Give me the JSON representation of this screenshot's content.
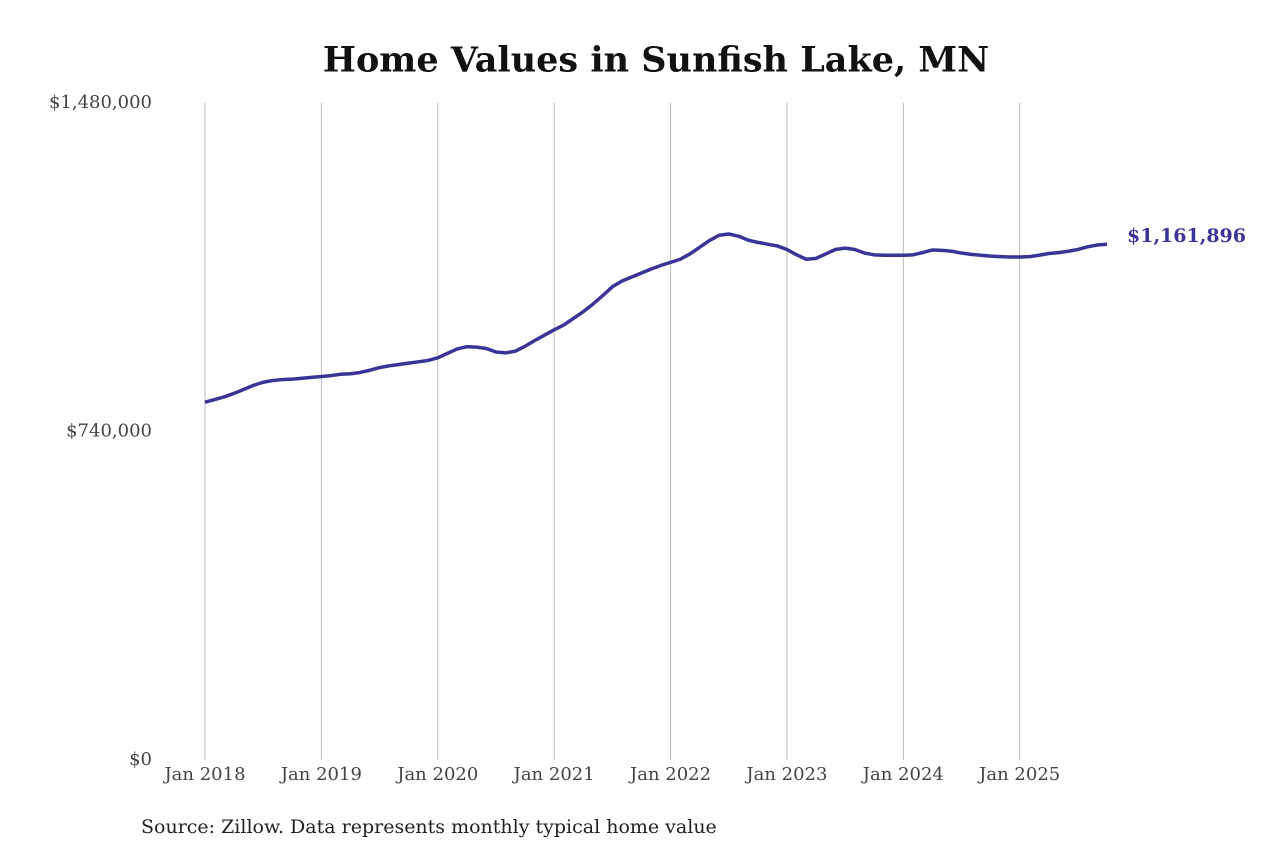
{
  "chart_data": {
    "type": "line",
    "title": "Home Values in Sunfish Lake, MN",
    "note": "Source: Zillow. Data represents monthly typical home value",
    "x": [
      "2018-01",
      "2018-02",
      "2018-03",
      "2018-04",
      "2018-05",
      "2018-06",
      "2018-07",
      "2018-08",
      "2018-09",
      "2018-10",
      "2018-11",
      "2018-12",
      "2019-01",
      "2019-02",
      "2019-03",
      "2019-04",
      "2019-05",
      "2019-06",
      "2019-07",
      "2019-08",
      "2019-09",
      "2019-10",
      "2019-11",
      "2019-12",
      "2020-01",
      "2020-02",
      "2020-03",
      "2020-04",
      "2020-05",
      "2020-06",
      "2020-07",
      "2020-08",
      "2020-09",
      "2020-10",
      "2020-11",
      "2020-12",
      "2021-01",
      "2021-02",
      "2021-03",
      "2021-04",
      "2021-05",
      "2021-06",
      "2021-07",
      "2021-08",
      "2021-09",
      "2021-10",
      "2021-11",
      "2021-12",
      "2022-01",
      "2022-02",
      "2022-03",
      "2022-04",
      "2022-05",
      "2022-06",
      "2022-07",
      "2022-08",
      "2022-09",
      "2022-10",
      "2022-11",
      "2022-12",
      "2023-01",
      "2023-02",
      "2023-03",
      "2023-04",
      "2023-05",
      "2023-06",
      "2023-07",
      "2023-08",
      "2023-09",
      "2023-10",
      "2023-11",
      "2023-12",
      "2024-01",
      "2024-02",
      "2024-03",
      "2024-04",
      "2024-05",
      "2024-06",
      "2024-07",
      "2024-08",
      "2024-09",
      "2024-10",
      "2024-11",
      "2024-12",
      "2025-01",
      "2025-02",
      "2025-03",
      "2025-04",
      "2025-05",
      "2025-06",
      "2025-07",
      "2025-08",
      "2025-09",
      "2025-10"
    ],
    "series": [
      {
        "color": "#3a3496",
        "values": [
          806000,
          812000,
          818000,
          826000,
          835000,
          844000,
          851000,
          855000,
          857000,
          858000,
          860000,
          862000,
          864000,
          866000,
          869000,
          870000,
          873000,
          878000,
          884000,
          888000,
          891000,
          894000,
          897000,
          900000,
          906000,
          916000,
          926000,
          931000,
          930000,
          927000,
          919000,
          917000,
          921000,
          932000,
          945000,
          957000,
          969000,
          980000,
          995000,
          1010000,
          1027000,
          1046000,
          1066000,
          1079000,
          1088000,
          1097000,
          1106000,
          1114000,
          1121000,
          1128000,
          1140000,
          1155000,
          1170000,
          1182000,
          1185000,
          1180000,
          1171000,
          1166000,
          1162000,
          1158000,
          1150000,
          1138000,
          1128000,
          1130000,
          1140000,
          1150000,
          1153000,
          1150000,
          1142000,
          1138000,
          1137000,
          1137000,
          1137000,
          1138000,
          1143000,
          1149000,
          1148000,
          1146000,
          1142000,
          1139000,
          1137000,
          1135000,
          1134000,
          1133000,
          1133000,
          1134000,
          1137000,
          1141000,
          1143000,
          1146000,
          1150000,
          1156000,
          1160000,
          1161896
        ],
        "end_label": {
          "value": 1161896,
          "label": "$1,161,896"
        }
      }
    ],
    "xlim": [
      "2018-01",
      "2025-10"
    ],
    "xticks": [
      {
        "value": "2018-01",
        "label": "Jan 2018"
      },
      {
        "value": "2019-01",
        "label": "Jan 2019"
      },
      {
        "value": "2020-01",
        "label": "Jan 2020"
      },
      {
        "value": "2021-01",
        "label": "Jan 2021"
      },
      {
        "value": "2022-01",
        "label": "Jan 2022"
      },
      {
        "value": "2023-01",
        "label": "Jan 2023"
      },
      {
        "value": "2024-01",
        "label": "Jan 2024"
      },
      {
        "value": "2025-01",
        "label": "Jan 2025"
      }
    ],
    "ylim": [
      0,
      1480000
    ],
    "yticks": [
      {
        "value": 0,
        "label": "$0"
      },
      {
        "value": 740000,
        "label": "$740,000"
      },
      {
        "value": 1480000,
        "label": "$1,480,000"
      }
    ],
    "grid": "x"
  }
}
